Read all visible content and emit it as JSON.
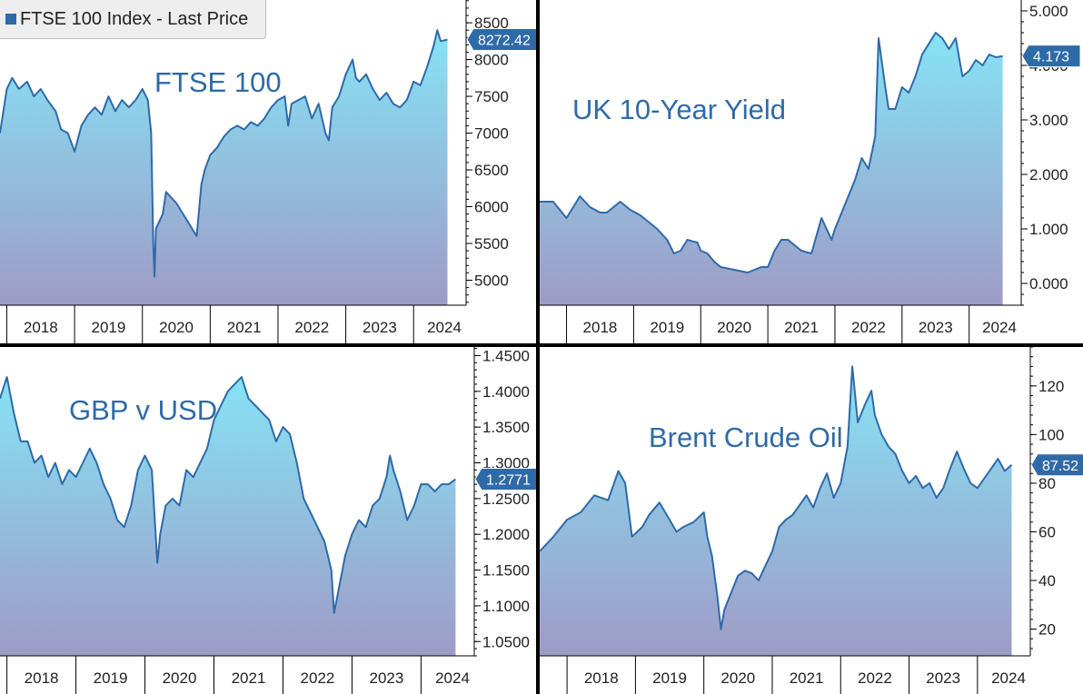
{
  "legend": {
    "text": "FTSE 100 Index - Last Price",
    "swatch_color": "#2f6aa8"
  },
  "colors": {
    "line": "#2f6aa8",
    "fill_top": "#86e3f6",
    "fill_bottom": "#9f9bc6",
    "title": "#2f6aa8",
    "label_bg": "#2f6aa8",
    "label_text": "#ffffff"
  },
  "chart_data": [
    {
      "id": "ftse",
      "type": "area",
      "title": "FTSE 100",
      "ytick_labels": [
        "8500",
        "8000",
        "7500",
        "7000",
        "6500",
        "6000",
        "5500",
        "5000"
      ],
      "ytick_values": [
        8500,
        8000,
        7500,
        7000,
        6500,
        6000,
        5500,
        5000
      ],
      "ylim": [
        4660,
        8810
      ],
      "xlim": [
        2017.9,
        2024.6
      ],
      "xtick_labels": [
        "2018",
        "2019",
        "2020",
        "2021",
        "2022",
        "2023",
        "2024"
      ],
      "last_value_label": "8272.42",
      "last_value": 8272.42,
      "x": [
        2017.9,
        2018.0,
        2018.08,
        2018.18,
        2018.3,
        2018.4,
        2018.5,
        2018.6,
        2018.72,
        2018.8,
        2018.9,
        2019.0,
        2019.1,
        2019.2,
        2019.3,
        2019.4,
        2019.5,
        2019.6,
        2019.7,
        2019.8,
        2019.9,
        2020.0,
        2020.08,
        2020.13,
        2020.16,
        2020.18,
        2020.2,
        2020.25,
        2020.3,
        2020.35,
        2020.4,
        2020.45,
        2020.5,
        2020.6,
        2020.7,
        2020.8,
        2020.83,
        2020.87,
        2020.92,
        2021.0,
        2021.1,
        2021.2,
        2021.3,
        2021.4,
        2021.5,
        2021.6,
        2021.7,
        2021.8,
        2021.9,
        2022.0,
        2022.1,
        2022.15,
        2022.2,
        2022.3,
        2022.4,
        2022.5,
        2022.6,
        2022.7,
        2022.75,
        2022.8,
        2022.9,
        2023.0,
        2023.1,
        2023.15,
        2023.2,
        2023.3,
        2023.4,
        2023.5,
        2023.6,
        2023.7,
        2023.8,
        2023.9,
        2024.0,
        2024.1,
        2024.2,
        2024.3,
        2024.35,
        2024.4,
        2024.5
      ],
      "y": [
        7000,
        7600,
        7750,
        7600,
        7700,
        7500,
        7600,
        7450,
        7300,
        7050,
        7000,
        6750,
        7100,
        7250,
        7350,
        7250,
        7500,
        7300,
        7450,
        7350,
        7450,
        7600,
        7450,
        7000,
        5500,
        5050,
        5700,
        5800,
        5900,
        6200,
        6150,
        6100,
        6050,
        5900,
        5750,
        5600,
        5900,
        6300,
        6500,
        6700,
        6800,
        6950,
        7050,
        7100,
        7050,
        7150,
        7100,
        7200,
        7350,
        7450,
        7500,
        7100,
        7400,
        7450,
        7500,
        7200,
        7400,
        7000,
        6900,
        7350,
        7500,
        7800,
        8000,
        7750,
        7700,
        7800,
        7600,
        7450,
        7550,
        7400,
        7350,
        7450,
        7700,
        7650,
        7900,
        8200,
        8400,
        8250,
        8272
      ]
    },
    {
      "id": "gilt",
      "type": "area",
      "title": "UK 10-Year Yield",
      "ytick_labels": [
        "5.000",
        "4.000",
        "3.000",
        "2.000",
        "1.000",
        "0.000"
      ],
      "ytick_values": [
        5,
        4,
        3,
        2,
        1,
        0
      ],
      "ylim": [
        -0.4,
        5.2
      ],
      "xlim": [
        2017.6,
        2024.6
      ],
      "xtick_labels": [
        "2018",
        "2019",
        "2020",
        "2021",
        "2022",
        "2023",
        "2024"
      ],
      "last_value_label": "4.173",
      "last_value": 4.173,
      "x": [
        2017.6,
        2017.8,
        2018.0,
        2018.1,
        2018.2,
        2018.35,
        2018.5,
        2018.6,
        2018.8,
        2018.95,
        2019.1,
        2019.2,
        2019.35,
        2019.5,
        2019.6,
        2019.7,
        2019.8,
        2019.95,
        2020.0,
        2020.1,
        2020.2,
        2020.3,
        2020.5,
        2020.7,
        2020.9,
        2021.0,
        2021.1,
        2021.2,
        2021.3,
        2021.5,
        2021.65,
        2021.8,
        2021.95,
        2022.0,
        2022.1,
        2022.2,
        2022.3,
        2022.4,
        2022.5,
        2022.6,
        2022.65,
        2022.75,
        2022.8,
        2022.9,
        2023.0,
        2023.1,
        2023.2,
        2023.3,
        2023.4,
        2023.5,
        2023.6,
        2023.7,
        2023.8,
        2023.9,
        2024.0,
        2024.1,
        2024.2,
        2024.3,
        2024.4,
        2024.5
      ],
      "y": [
        1.5,
        1.5,
        1.2,
        1.4,
        1.6,
        1.4,
        1.3,
        1.3,
        1.5,
        1.35,
        1.25,
        1.15,
        1.0,
        0.8,
        0.55,
        0.6,
        0.8,
        0.75,
        0.6,
        0.55,
        0.4,
        0.3,
        0.25,
        0.2,
        0.3,
        0.3,
        0.6,
        0.8,
        0.8,
        0.6,
        0.55,
        1.2,
        0.8,
        1.0,
        1.3,
        1.6,
        1.9,
        2.3,
        2.1,
        2.7,
        4.5,
        3.6,
        3.2,
        3.2,
        3.6,
        3.5,
        3.8,
        4.2,
        4.4,
        4.6,
        4.5,
        4.3,
        4.5,
        3.8,
        3.9,
        4.1,
        4.0,
        4.2,
        4.15,
        4.17
      ]
    },
    {
      "id": "gbpusd",
      "type": "area",
      "title": "GBP v USD",
      "ytick_labels": [
        "1.4500",
        "1.4000",
        "1.3500",
        "1.3000",
        "1.2500",
        "1.2000",
        "1.1500",
        "1.1000",
        "1.0500"
      ],
      "ytick_values": [
        1.45,
        1.4,
        1.35,
        1.3,
        1.25,
        1.2,
        1.15,
        1.1,
        1.05
      ],
      "ylim": [
        1.03,
        1.462
      ],
      "xlim": [
        2017.9,
        2024.6
      ],
      "xtick_labels": [
        "2018",
        "2019",
        "2020",
        "2021",
        "2022",
        "2023",
        "2024"
      ],
      "last_value_label": "1.2771",
      "last_value": 1.2771,
      "x": [
        2017.9,
        2018.0,
        2018.1,
        2018.2,
        2018.3,
        2018.4,
        2018.5,
        2018.6,
        2018.7,
        2018.8,
        2018.9,
        2019.0,
        2019.1,
        2019.2,
        2019.3,
        2019.4,
        2019.5,
        2019.6,
        2019.7,
        2019.8,
        2019.9,
        2020.0,
        2020.1,
        2020.18,
        2020.22,
        2020.3,
        2020.4,
        2020.5,
        2020.6,
        2020.7,
        2020.8,
        2020.9,
        2021.0,
        2021.1,
        2021.2,
        2021.3,
        2021.4,
        2021.5,
        2021.6,
        2021.7,
        2021.8,
        2021.9,
        2022.0,
        2022.1,
        2022.2,
        2022.3,
        2022.4,
        2022.5,
        2022.6,
        2022.7,
        2022.74,
        2022.8,
        2022.9,
        2023.0,
        2023.1,
        2023.2,
        2023.3,
        2023.4,
        2023.5,
        2023.55,
        2023.6,
        2023.7,
        2023.8,
        2023.9,
        2024.0,
        2024.1,
        2024.2,
        2024.3,
        2024.4,
        2024.5
      ],
      "y": [
        1.39,
        1.42,
        1.37,
        1.33,
        1.33,
        1.3,
        1.31,
        1.28,
        1.3,
        1.27,
        1.29,
        1.28,
        1.3,
        1.32,
        1.3,
        1.27,
        1.25,
        1.22,
        1.21,
        1.24,
        1.29,
        1.31,
        1.29,
        1.16,
        1.2,
        1.24,
        1.25,
        1.24,
        1.29,
        1.28,
        1.3,
        1.32,
        1.36,
        1.38,
        1.4,
        1.41,
        1.42,
        1.39,
        1.38,
        1.37,
        1.36,
        1.33,
        1.35,
        1.34,
        1.3,
        1.25,
        1.23,
        1.21,
        1.19,
        1.15,
        1.09,
        1.12,
        1.17,
        1.2,
        1.22,
        1.21,
        1.24,
        1.25,
        1.28,
        1.31,
        1.29,
        1.26,
        1.22,
        1.24,
        1.27,
        1.27,
        1.26,
        1.27,
        1.27,
        1.277
      ]
    },
    {
      "id": "brent",
      "type": "area",
      "title": "Brent Crude Oil",
      "ytick_labels": [
        "120",
        "100",
        "80",
        "60",
        "40",
        "20"
      ],
      "ytick_values": [
        120,
        100,
        80,
        60,
        40,
        20
      ],
      "ylim": [
        9,
        136
      ],
      "xlim": [
        2017.6,
        2024.6
      ],
      "xtick_labels": [
        "2018",
        "2019",
        "2020",
        "2021",
        "2022",
        "2023",
        "2024"
      ],
      "last_value_label": "87.52",
      "last_value": 87.52,
      "x": [
        2017.6,
        2017.8,
        2018.0,
        2018.2,
        2018.4,
        2018.6,
        2018.75,
        2018.85,
        2018.95,
        2019.1,
        2019.2,
        2019.35,
        2019.5,
        2019.6,
        2019.7,
        2019.85,
        2020.0,
        2020.05,
        2020.12,
        2020.2,
        2020.25,
        2020.3,
        2020.4,
        2020.5,
        2020.6,
        2020.7,
        2020.8,
        2020.9,
        2021.0,
        2021.1,
        2021.2,
        2021.3,
        2021.4,
        2021.5,
        2021.6,
        2021.7,
        2021.8,
        2021.9,
        2022.0,
        2022.1,
        2022.17,
        2022.25,
        2022.35,
        2022.45,
        2022.5,
        2022.6,
        2022.7,
        2022.8,
        2022.9,
        2023.0,
        2023.1,
        2023.2,
        2023.3,
        2023.4,
        2023.5,
        2023.6,
        2023.7,
        2023.8,
        2023.9,
        2024.0,
        2024.1,
        2024.2,
        2024.3,
        2024.4,
        2024.5
      ],
      "y": [
        52,
        58,
        65,
        68,
        75,
        73,
        85,
        80,
        58,
        62,
        67,
        72,
        65,
        60,
        62,
        64,
        68,
        58,
        50,
        33,
        20,
        28,
        35,
        42,
        44,
        43,
        40,
        46,
        52,
        62,
        65,
        67,
        71,
        75,
        70,
        78,
        84,
        74,
        80,
        95,
        128,
        105,
        112,
        118,
        108,
        100,
        95,
        92,
        85,
        80,
        83,
        78,
        80,
        74,
        78,
        86,
        93,
        86,
        80,
        78,
        82,
        86,
        90,
        85,
        87.5
      ]
    }
  ]
}
